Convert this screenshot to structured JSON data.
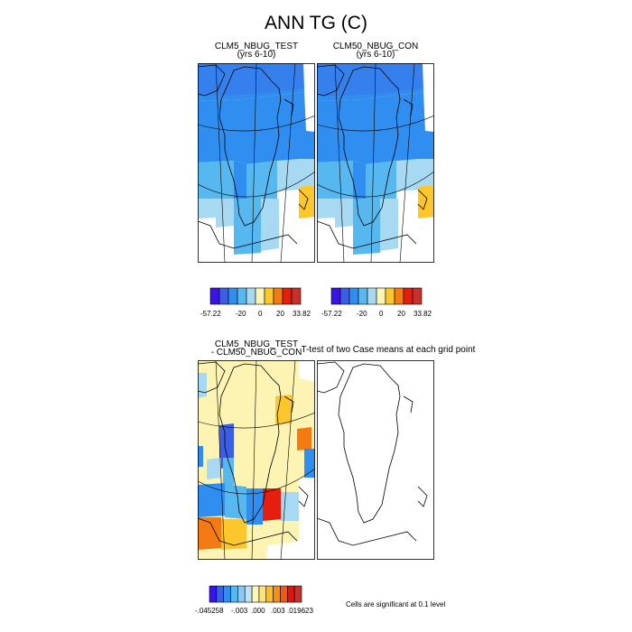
{
  "title": "ANN TG (C)",
  "panels": {
    "test": {
      "line1": "CLM5_NBUG_TEST",
      "line2": "(yrs 6-10)"
    },
    "con": {
      "line1": "CLM50_NBUG_CON",
      "line2": "(yrs 6-10)"
    },
    "diff": {
      "line1": "CLM5_NBUG_TEST",
      "line2": " - CLM50_NBUG_CON"
    },
    "ttest": {
      "line1": "T-test of two Case means at each grid point"
    }
  },
  "colorbars": {
    "top_left": {
      "labels": [
        "-57.22",
        "-20",
        "0",
        "20",
        "33.82"
      ]
    },
    "top_right": {
      "labels": [
        "-57.22",
        "-20",
        "0",
        "20",
        "33.82"
      ]
    },
    "bottom": {
      "labels": [
        "-.045258",
        "-.003",
        ".000",
        ".003",
        ".019623"
      ]
    }
  },
  "colors": {
    "top_scale": [
      "#3b12ea",
      "#3a5fe5",
      "#2f8ef0",
      "#56b8ee",
      "#a8d9f2",
      "#fdf4b3",
      "#fbc72d",
      "#f47b14",
      "#e51e10",
      "#c8302c"
    ],
    "diff_scale": [
      "#3b12ea",
      "#3a5fe5",
      "#2f8ef0",
      "#56b8ee",
      "#8cc8ee",
      "#bfe3f4",
      "#fdf7b6",
      "#fbe37a",
      "#fbbe2a",
      "#f58f18",
      "#ef5a12",
      "#e0150f",
      "#c8302c"
    ]
  },
  "footnote": "Cells are significant at 0.1 level"
}
